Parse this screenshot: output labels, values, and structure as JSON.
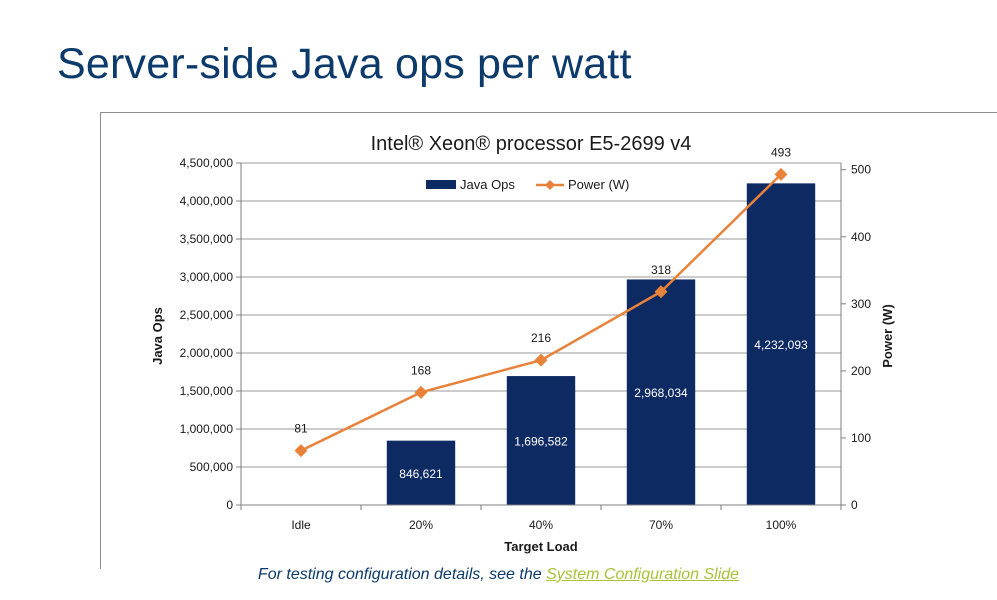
{
  "slide": {
    "title": "Server-side Java ops per watt",
    "footer_text": "For testing configuration details, see the ",
    "footer_link": "System Configuration Slide"
  },
  "chart_data": {
    "type": "bar",
    "title": "Intel® Xeon® processor E5-2699 v4",
    "xlabel": "Target Load",
    "ylabel": "Java Ops",
    "y2label": "Power (W)",
    "categories": [
      "Idle",
      "20%",
      "40%",
      "70%",
      "100%"
    ],
    "ylim": [
      0,
      4500000
    ],
    "y_ticks": [
      0,
      500000,
      1000000,
      1500000,
      2000000,
      2500000,
      3000000,
      3500000,
      4000000,
      4500000
    ],
    "y_tick_labels": [
      "0",
      "500,000",
      "1,000,000",
      "1,500,000",
      "2,000,000",
      "2,500,000",
      "3,000,000",
      "3,500,000",
      "4,000,000",
      "4,500,000"
    ],
    "y2lim": [
      0,
      510
    ],
    "y2_ticks": [
      0,
      100,
      200,
      300,
      400,
      500
    ],
    "y2_tick_labels": [
      "0",
      "100",
      "200",
      "300",
      "400",
      "500"
    ],
    "grid": true,
    "legend_position": "top",
    "series": [
      {
        "name": "Java Ops",
        "type": "bar",
        "axis": "left",
        "color": "#0e2a63",
        "values": [
          0,
          846621,
          1696582,
          2968034,
          4232093
        ],
        "labels": [
          "",
          "846,621",
          "1,696,582",
          "2,968,034",
          "4,232,093"
        ]
      },
      {
        "name": "Power (W)",
        "type": "line",
        "axis": "right",
        "color": "#e8823a",
        "values": [
          81,
          168,
          216,
          318,
          493
        ],
        "labels": [
          "81",
          "168",
          "216",
          "318",
          "493"
        ]
      }
    ]
  }
}
